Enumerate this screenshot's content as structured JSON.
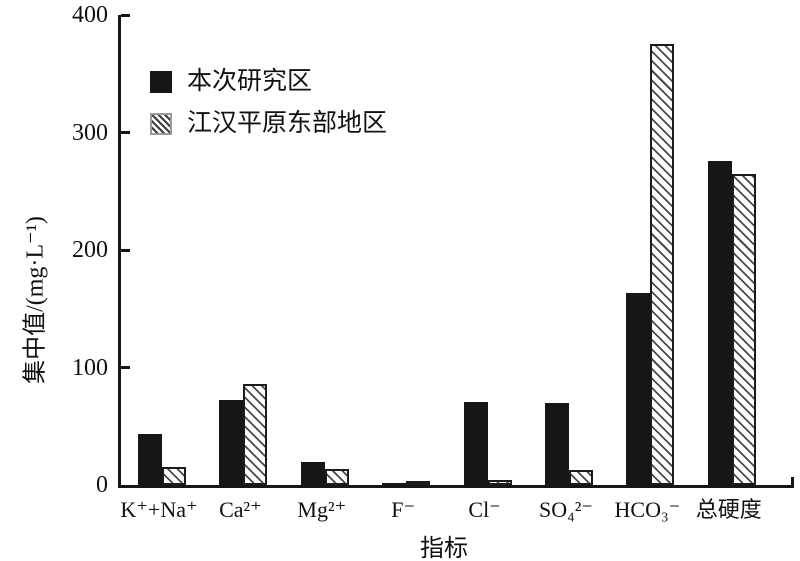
{
  "figure": {
    "background": "#ffffff"
  },
  "colors": {
    "axis": "#161616",
    "bar_fill": "#161616",
    "hatch_line": "#4a4a4a",
    "hatch_border": "#1c1c1c",
    "text": "#111111"
  },
  "chart_data": {
    "type": "bar",
    "title": "",
    "xlabel": "指标",
    "ylabel": "集中值/(mg·L⁻¹)",
    "categories": [
      "K⁺+Na⁺",
      "Ca²⁺",
      "Mg²⁺",
      "F⁻",
      "Cl⁻",
      "SO₄²⁻",
      "HCO₃⁻",
      "总硬度"
    ],
    "series": [
      {
        "name": "本次研究区",
        "style": "solid-black",
        "values": [
          43,
          72,
          20,
          2,
          71,
          70,
          163,
          276
        ]
      },
      {
        "name": "江汉平原东部地区",
        "style": "diagonal-hatch",
        "values": [
          15,
          86,
          14,
          1,
          4,
          13,
          375,
          265
        ]
      }
    ],
    "ylim": [
      0,
      400
    ],
    "yticks": [
      0,
      100,
      200,
      300,
      400
    ],
    "grid": false,
    "legend_position": "upper-left-inside"
  }
}
